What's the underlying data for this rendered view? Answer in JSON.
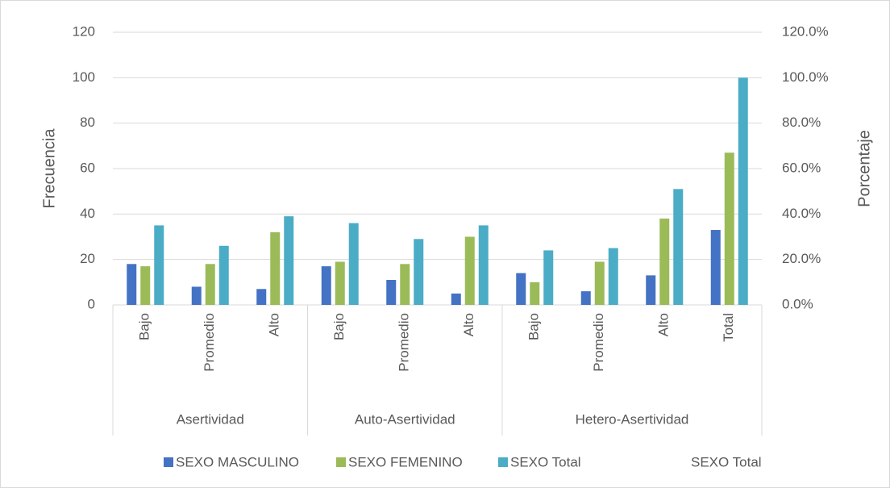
{
  "chart_data": {
    "type": "bar",
    "groups": [
      {
        "name": "Asertividad",
        "categories": [
          "Bajo",
          "Promedio",
          "Alto"
        ]
      },
      {
        "name": "Auto-Asertividad",
        "categories": [
          "Bajo",
          "Promedio",
          "Alto"
        ]
      },
      {
        "name": "Hetero-Asertividad",
        "categories": [
          "Bajo",
          "Promedio",
          "Alto",
          "Total"
        ]
      }
    ],
    "y_label": "Frecuencia",
    "y2_label": "Porcentaje",
    "series": [
      {
        "name": "SEXO MASCULINO",
        "color": "#4472c4",
        "values": [
          18,
          8,
          7,
          17,
          11,
          5,
          14,
          6,
          13,
          33
        ]
      },
      {
        "name": "SEXO FEMENINO",
        "color": "#9bbb59",
        "values": [
          17,
          18,
          32,
          19,
          18,
          30,
          10,
          19,
          38,
          67
        ]
      },
      {
        "name": "SEXO Total",
        "color": "#4bacc6",
        "values": [
          35,
          26,
          39,
          36,
          29,
          35,
          24,
          25,
          51,
          100
        ]
      },
      {
        "name": "SEXO Total",
        "type": "line",
        "axis": "y2",
        "values": [
          null,
          null,
          null,
          null,
          null,
          null,
          null,
          null,
          null,
          null
        ]
      }
    ],
    "ylim": [
      0,
      120
    ],
    "yticks": [
      0,
      20,
      40,
      60,
      80,
      100,
      120
    ],
    "y2lim": [
      0,
      120
    ],
    "y2ticks": [
      {
        "value": 0,
        "label": "0.0%"
      },
      {
        "value": 20,
        "label": "20.0%"
      },
      {
        "value": 40,
        "label": "40.0%"
      },
      {
        "value": 60,
        "label": "60.0%"
      },
      {
        "value": 80,
        "label": "80.0%"
      },
      {
        "value": 100,
        "label": "100.0%"
      },
      {
        "value": 120,
        "label": "120.0%"
      }
    ],
    "grid": true,
    "legend": "bottom"
  }
}
